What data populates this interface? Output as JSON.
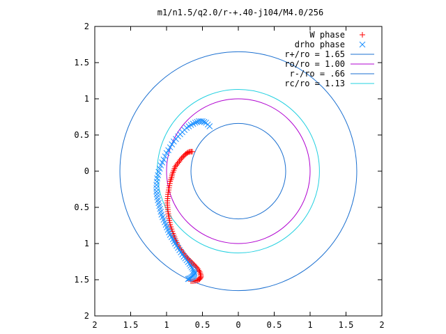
{
  "chart_data": {
    "type": "scatter",
    "title": "m1/n1.5/q2.0/r-+.40-j104/M4.0/256",
    "xlim": [
      -2,
      2
    ],
    "ylim": [
      -2,
      2
    ],
    "x_ticks": [
      "2",
      "1.5",
      "1",
      "0.5",
      "0",
      "0.5",
      "1",
      "1.5",
      "2"
    ],
    "y_ticks": [
      "2",
      "1.5",
      "1",
      "0.5",
      "0",
      "0.5",
      "1",
      "1.5",
      "2"
    ],
    "x_tick_values": [
      -2,
      -1.5,
      -1,
      -0.5,
      0,
      0.5,
      1,
      1.5,
      2
    ],
    "y_tick_values": [
      2,
      1.5,
      1,
      0.5,
      0,
      -0.5,
      -1,
      -1.5,
      -2
    ],
    "legend_position": "top-right",
    "grid": false,
    "circles": [
      {
        "name": "r+/ro = 1.65",
        "radius": 1.65,
        "color": "#1a6fd0"
      },
      {
        "name": "ro/ro = 1.00",
        "radius": 1.0,
        "color": "#b000d0"
      },
      {
        "name": "r-/ro = .66",
        "radius": 0.66,
        "color": "#1a6fd0"
      },
      {
        "name": "rc/ro = 1.13",
        "radius": 1.13,
        "color": "#22d0e0"
      }
    ],
    "series": [
      {
        "name": "W phase",
        "marker": "+",
        "color": "#ff0000",
        "x": [
          -0.64,
          -0.67,
          -0.7,
          -0.73,
          -0.76,
          -0.79,
          -0.82,
          -0.85,
          -0.88,
          -0.9,
          -0.92,
          -0.93,
          -0.95,
          -0.96,
          -0.97,
          -0.98,
          -0.985,
          -0.99,
          -0.985,
          -0.98,
          -0.97,
          -0.96,
          -0.95,
          -0.93,
          -0.91,
          -0.89,
          -0.87,
          -0.85,
          -0.82,
          -0.79,
          -0.76,
          -0.73,
          -0.7,
          -0.67,
          -0.64,
          -0.61,
          -0.58,
          -0.55,
          -0.53,
          -0.52,
          -0.53,
          -0.55,
          -0.58,
          -0.62,
          -0.66
        ],
        "y": [
          0.27,
          0.27,
          0.26,
          0.24,
          0.21,
          0.18,
          0.14,
          0.1,
          0.06,
          0.01,
          -0.04,
          -0.09,
          -0.14,
          -0.2,
          -0.26,
          -0.32,
          -0.38,
          -0.44,
          -0.5,
          -0.56,
          -0.62,
          -0.68,
          -0.74,
          -0.8,
          -0.86,
          -0.91,
          -0.96,
          -1.01,
          -1.06,
          -1.1,
          -1.14,
          -1.18,
          -1.21,
          -1.24,
          -1.27,
          -1.3,
          -1.33,
          -1.37,
          -1.41,
          -1.45,
          -1.48,
          -1.5,
          -1.51,
          -1.52,
          -1.52
        ]
      },
      {
        "name": "drho phase",
        "marker": "x",
        "color": "#1a8fff",
        "x": [
          -0.4,
          -0.45,
          -0.5,
          -0.55,
          -0.6,
          -0.66,
          -0.72,
          -0.78,
          -0.84,
          -0.9,
          -0.95,
          -1.0,
          -1.04,
          -1.08,
          -1.11,
          -1.13,
          -1.14,
          -1.14,
          -1.13,
          -1.11,
          -1.09,
          -1.07,
          -1.04,
          -1.01,
          -0.98,
          -0.95,
          -0.91,
          -0.88,
          -0.84,
          -0.8,
          -0.76,
          -0.72,
          -0.68,
          -0.65,
          -0.62,
          -0.61,
          -0.62,
          -0.64,
          -0.67,
          -0.7
        ],
        "y": [
          0.62,
          0.67,
          0.69,
          0.69,
          0.67,
          0.64,
          0.6,
          0.54,
          0.48,
          0.41,
          0.33,
          0.25,
          0.16,
          0.08,
          -0.01,
          -0.1,
          -0.19,
          -0.28,
          -0.36,
          -0.44,
          -0.52,
          -0.6,
          -0.67,
          -0.74,
          -0.81,
          -0.88,
          -0.94,
          -1.0,
          -1.06,
          -1.12,
          -1.18,
          -1.23,
          -1.28,
          -1.33,
          -1.37,
          -1.41,
          -1.44,
          -1.46,
          -1.48,
          -1.49
        ]
      }
    ]
  }
}
